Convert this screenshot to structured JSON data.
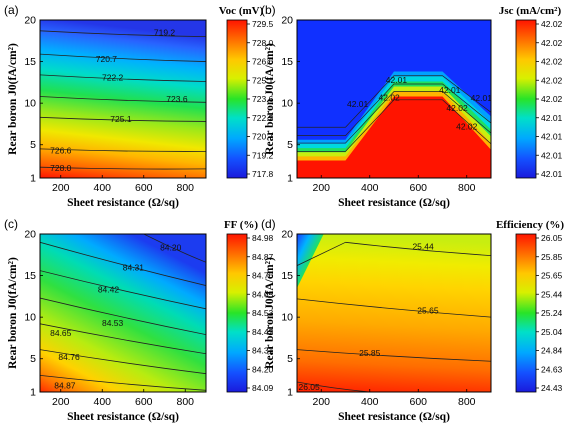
{
  "chart_data": [
    {
      "type": "heatmap",
      "panel_label": "(a)",
      "xlabel": "Sheet resistance (Ω/sq)",
      "ylabel": "Rear boron J0(fA/cm²)",
      "x_ticks": [
        200,
        400,
        600,
        800
      ],
      "y_ticks": [
        1,
        5,
        10,
        15,
        20
      ],
      "xlim": [
        100,
        900
      ],
      "ylim": [
        1,
        20
      ],
      "colorbar_title": "Voc (mV)",
      "colorbar_ticks": [
        "729.5",
        "728.0",
        "726.6",
        "725.1",
        "723.6",
        "722.2",
        "720.7",
        "719.2",
        "717.8"
      ],
      "colorbar_range": [
        717.8,
        729.5
      ],
      "contour_labels": [
        {
          "text": "719.2",
          "x": 700,
          "y": 18.5
        },
        {
          "text": "720.7",
          "x": 420,
          "y": 15.3
        },
        {
          "text": "722.2",
          "x": 450,
          "y": 13.1
        },
        {
          "text": "723.6",
          "x": 760,
          "y": 10.5
        },
        {
          "text": "725.1",
          "x": 490,
          "y": 8.1
        },
        {
          "text": "726.6",
          "x": 200,
          "y": 4.3
        },
        {
          "text": "728.0",
          "x": 200,
          "y": 2.2
        }
      ]
    },
    {
      "type": "heatmap",
      "panel_label": "(b)",
      "xlabel": "Sheet resistance (Ω/sq)",
      "ylabel": "Rear boron J0(fA/cm²)",
      "x_ticks": [
        200,
        400,
        600,
        800
      ],
      "y_ticks": [
        1,
        5,
        10,
        15,
        20
      ],
      "xlim": [
        100,
        900
      ],
      "ylim": [
        1,
        20
      ],
      "colorbar_title": "Jsc (mA/cm²)",
      "colorbar_ticks": [
        "42.02",
        "42.02",
        "42.02",
        "42.02",
        "42.02",
        "42.01",
        "42.01",
        "42.01",
        "42.01"
      ],
      "colorbar_range": [
        42.01,
        42.02
      ],
      "contour_labels": [
        {
          "text": "42.01",
          "x": 510,
          "y": 12.8
        },
        {
          "text": "42.01",
          "x": 730,
          "y": 11.6
        },
        {
          "text": "42.02",
          "x": 480,
          "y": 10.7
        },
        {
          "text": "42.01",
          "x": 350,
          "y": 9.9
        },
        {
          "text": "42.02",
          "x": 760,
          "y": 9.4
        },
        {
          "text": "42.02",
          "x": 800,
          "y": 7.2
        },
        {
          "text": "42.01",
          "x": 860,
          "y": 10.6
        }
      ]
    },
    {
      "type": "heatmap",
      "panel_label": "(c)",
      "xlabel": "Sheet resistance (Ω/sq)",
      "ylabel": "Rear boron J0(fA/cm²)",
      "x_ticks": [
        200,
        400,
        600,
        800
      ],
      "y_ticks": [
        1,
        5,
        10,
        15,
        20
      ],
      "xlim": [
        100,
        900
      ],
      "ylim": [
        1,
        20
      ],
      "colorbar_title": "FF (%)",
      "colorbar_ticks": [
        "84.98",
        "84.87",
        "84.76",
        "84.65",
        "84.53",
        "84.42",
        "84.31",
        "84.20",
        "84.09"
      ],
      "colorbar_range": [
        84.09,
        84.98
      ],
      "contour_labels": [
        {
          "text": "84.20",
          "x": 730,
          "y": 18.4
        },
        {
          "text": "84.31",
          "x": 550,
          "y": 16.0
        },
        {
          "text": "84.42",
          "x": 430,
          "y": 13.3
        },
        {
          "text": "84.53",
          "x": 450,
          "y": 9.3
        },
        {
          "text": "84.65",
          "x": 200,
          "y": 8.1
        },
        {
          "text": "84.76",
          "x": 240,
          "y": 5.2
        },
        {
          "text": "84.87",
          "x": 220,
          "y": 1.8
        }
      ]
    },
    {
      "type": "heatmap",
      "panel_label": "(d)",
      "xlabel": "Sheet resistance (Ω/sq)",
      "ylabel": "Rear boron J0(fA/cm²)",
      "x_ticks": [
        200,
        400,
        600,
        800
      ],
      "y_ticks": [
        1,
        5,
        10,
        15,
        20
      ],
      "xlim": [
        100,
        900
      ],
      "ylim": [
        1,
        20
      ],
      "colorbar_title": "Efficiency (%)",
      "colorbar_ticks": [
        "26.05",
        "25.85",
        "25.65",
        "25.44",
        "25.24",
        "25.04",
        "24.84",
        "24.63",
        "24.43"
      ],
      "colorbar_range": [
        24.43,
        26.05
      ],
      "contour_labels": [
        {
          "text": "25.44",
          "x": 620,
          "y": 18.5
        },
        {
          "text": "25.65",
          "x": 640,
          "y": 10.8
        },
        {
          "text": "25.85",
          "x": 400,
          "y": 5.7
        },
        {
          "text": "26.05",
          "x": 150,
          "y": 1.6
        }
      ]
    }
  ]
}
